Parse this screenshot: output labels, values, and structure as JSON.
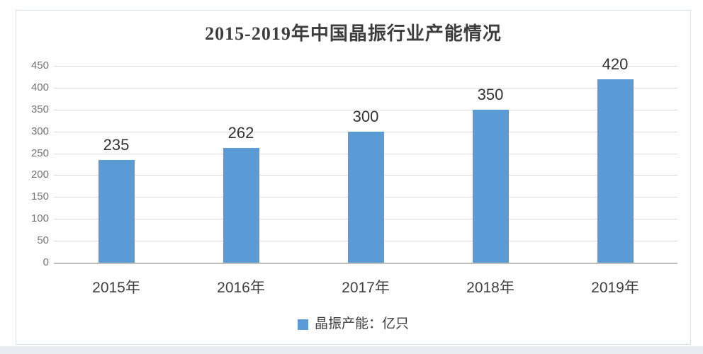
{
  "chart_data": {
    "type": "bar",
    "title": "2015-2019年中国晶振行业产能情况",
    "categories": [
      "2015年",
      "2016年",
      "2017年",
      "2018年",
      "2019年"
    ],
    "values": [
      235,
      262,
      300,
      350,
      420
    ],
    "series_name": "晶振产能：亿只",
    "legend": {
      "label": "晶振产能：亿只",
      "position": "bottom",
      "marker_color": "#5b9bd5"
    },
    "xlabel": "",
    "ylabel": "",
    "ylim": [
      0,
      450
    ],
    "yticks": [
      0,
      50,
      100,
      150,
      200,
      250,
      300,
      350,
      400,
      450
    ],
    "grid": true,
    "data_labels": true,
    "colors": {
      "bar": "#5b9bd5",
      "gridline": "#dcdcdc",
      "axis_line": "#bfbfbf",
      "y_tick_label": "#737373",
      "category_label": "#3f3f3f",
      "value_label": "#333333",
      "title": "#3d3d3d",
      "panel_border": "#d9dee3",
      "background": "#ffffff"
    }
  }
}
